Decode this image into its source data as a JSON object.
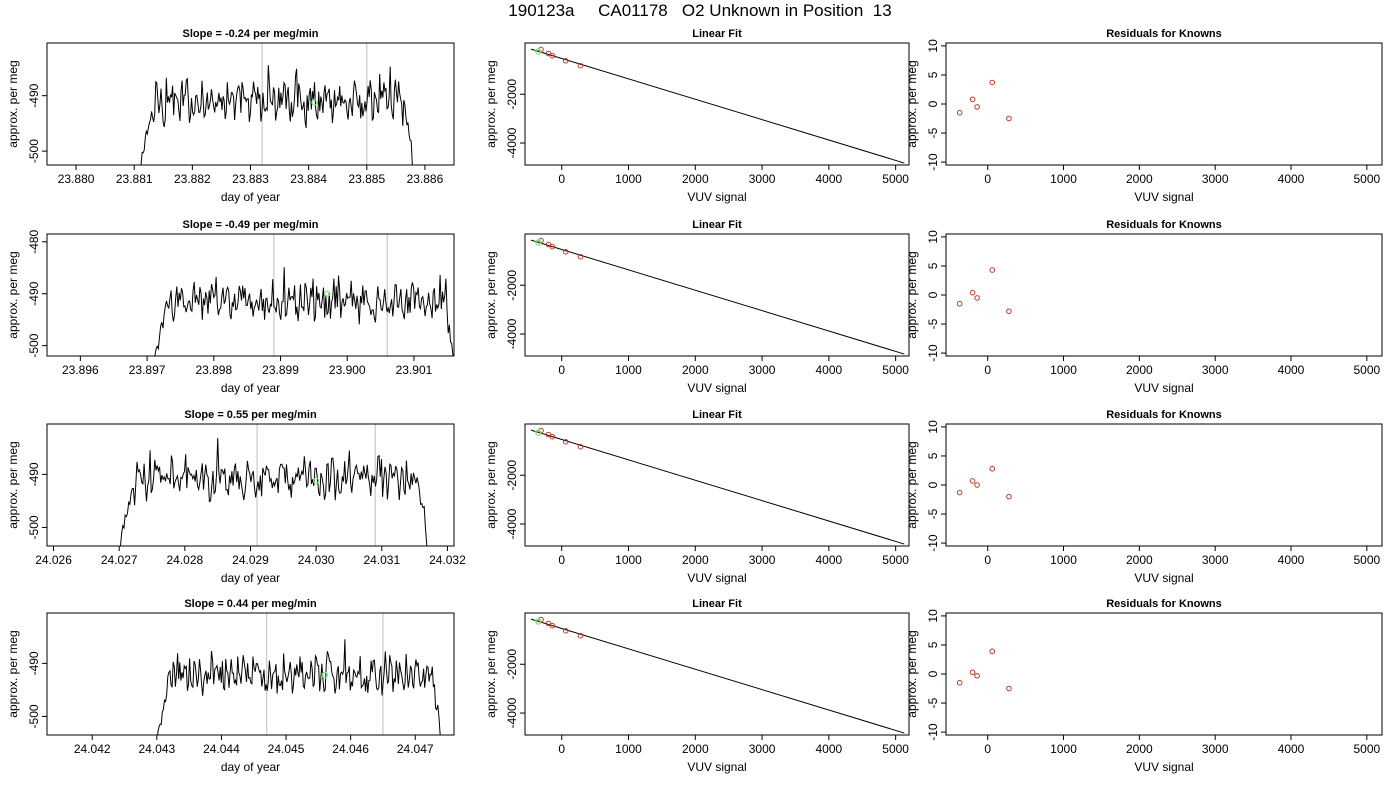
{
  "page": {
    "title": "190123a     CA01178   O2 Unknown in Position  13"
  },
  "colors": {
    "frame": "#000000",
    "trace": "#000000",
    "vertical_marker": "#c8c8c8",
    "highlight_point": "#7ee87e",
    "known_points": "#c0392b",
    "fit_line": "#000000"
  },
  "chart_data": [
    {
      "type": "line",
      "row": 0,
      "title": "Slope =  -0.24  per meg/min",
      "xlabel": "day of year",
      "ylabel": "approx. per meg",
      "xlim": [
        23.8795,
        23.8865
      ],
      "ylim": [
        -502.5,
        -480.5
      ],
      "xticks": [
        "23.880",
        "23.881",
        "23.882",
        "23.883",
        "23.884",
        "23.885",
        "23.886"
      ],
      "xtick_values": [
        23.88,
        23.881,
        23.882,
        23.883,
        23.884,
        23.885,
        23.886
      ],
      "yticks": [
        "-500",
        "-490"
      ],
      "ytick_values": [
        -500,
        -490
      ],
      "trace_start": 23.8811,
      "trace_end": 23.8858,
      "trace_level": -491.0,
      "vlines": [
        23.8832,
        23.885
      ],
      "highlight": {
        "x": 23.8841,
        "y": -491.2
      }
    },
    {
      "type": "line",
      "title": "Linear Fit",
      "row": 0,
      "xlabel": "VUV signal",
      "ylabel": "approx. per meg",
      "xlim": [
        -550,
        5200
      ],
      "ylim": [
        -4900,
        100
      ],
      "xticks": [
        "0",
        "1000",
        "2000",
        "3000",
        "4000",
        "5000"
      ],
      "xtick_values": [
        0,
        1000,
        2000,
        3000,
        4000,
        5000
      ],
      "yticks": [
        "-4000",
        "-2000"
      ],
      "ytick_values": [
        -4000,
        -2000
      ],
      "line": {
        "x": [
          -460,
          5130
        ],
        "y": [
          -150,
          -4820
        ]
      },
      "knowns": [
        {
          "x": -310,
          "y": -170
        },
        {
          "x": -200,
          "y": -330
        },
        {
          "x": -140,
          "y": -420
        },
        {
          "x": 60,
          "y": -630
        },
        {
          "x": 280,
          "y": -830
        }
      ],
      "unknown": {
        "x": -350,
        "y": -250
      }
    },
    {
      "type": "scatter",
      "row": 0,
      "title": "Residuals for Knowns",
      "xlabel": "VUV signal",
      "ylabel": "approx. per meg",
      "xlim": [
        -550,
        5200
      ],
      "ylim": [
        -10.5,
        10.5
      ],
      "xticks": [
        "0",
        "1000",
        "2000",
        "3000",
        "4000",
        "5000"
      ],
      "xtick_values": [
        0,
        1000,
        2000,
        3000,
        4000,
        5000
      ],
      "yticks": [
        "-10",
        "-5",
        "0",
        "5",
        "10"
      ],
      "ytick_values": [
        -10,
        -5,
        0,
        5,
        10
      ],
      "points": [
        {
          "x": -370,
          "y": -1.5
        },
        {
          "x": -200,
          "y": 0.8
        },
        {
          "x": -140,
          "y": -0.5
        },
        {
          "x": 60,
          "y": 3.7
        },
        {
          "x": 280,
          "y": -2.5
        }
      ]
    },
    {
      "type": "line",
      "row": 1,
      "title": "Slope =  -0.49  per meg/min",
      "xlabel": "day of year",
      "ylabel": "approx. per meg",
      "xlim": [
        23.8955,
        23.9016
      ],
      "ylim": [
        -502.0,
        -478.5
      ],
      "xticks": [
        "23.896",
        "23.897",
        "23.898",
        "23.899",
        "23.900",
        "23.901"
      ],
      "xtick_values": [
        23.896,
        23.897,
        23.898,
        23.899,
        23.9,
        23.901
      ],
      "yticks": [
        "-500",
        "-490",
        "-480"
      ],
      "ytick_values": [
        -500,
        -490,
        -480
      ],
      "trace_start": 23.8971,
      "trace_end": 23.9016,
      "trace_level": -491.5,
      "vlines": [
        23.8989,
        23.9006
      ],
      "highlight": {
        "x": 23.8997,
        "y": -490.0
      }
    },
    {
      "type": "line",
      "row": 1,
      "title": "Linear Fit",
      "xlabel": "VUV signal",
      "ylabel": "approx. per meg",
      "xlim": [
        -550,
        5200
      ],
      "ylim": [
        -4900,
        100
      ],
      "xticks": [
        "0",
        "1000",
        "2000",
        "3000",
        "4000",
        "5000"
      ],
      "xtick_values": [
        0,
        1000,
        2000,
        3000,
        4000,
        5000
      ],
      "yticks": [
        "-4000",
        "-2000"
      ],
      "ytick_values": [
        -4000,
        -2000
      ],
      "line": {
        "x": [
          -460,
          5130
        ],
        "y": [
          -150,
          -4820
        ]
      },
      "knowns": [
        {
          "x": -310,
          "y": -170
        },
        {
          "x": -200,
          "y": -330
        },
        {
          "x": -140,
          "y": -420
        },
        {
          "x": 60,
          "y": -630
        },
        {
          "x": 280,
          "y": -830
        }
      ],
      "unknown": {
        "x": -350,
        "y": -250
      }
    },
    {
      "type": "scatter",
      "row": 1,
      "title": "Residuals for Knowns",
      "xlabel": "VUV signal",
      "ylabel": "approx. per meg",
      "xlim": [
        -550,
        5200
      ],
      "ylim": [
        -10.5,
        10.5
      ],
      "xticks": [
        "0",
        "1000",
        "2000",
        "3000",
        "4000",
        "5000"
      ],
      "xtick_values": [
        0,
        1000,
        2000,
        3000,
        4000,
        5000
      ],
      "yticks": [
        "-10",
        "-5",
        "0",
        "5",
        "10"
      ],
      "ytick_values": [
        -10,
        -5,
        0,
        5,
        10
      ],
      "points": [
        {
          "x": -370,
          "y": -1.5
        },
        {
          "x": -200,
          "y": 0.4
        },
        {
          "x": -140,
          "y": -0.5
        },
        {
          "x": 60,
          "y": 4.3
        },
        {
          "x": 280,
          "y": -2.8
        }
      ]
    },
    {
      "type": "line",
      "row": 2,
      "title": "Slope =  0.55  per meg/min",
      "xlabel": "day of year",
      "ylabel": "approx. per meg",
      "xlim": [
        24.0259,
        24.0321
      ],
      "ylim": [
        -503.5,
        -480.5
      ],
      "xticks": [
        "24.026",
        "24.027",
        "24.028",
        "24.029",
        "24.030",
        "24.031",
        "24.032"
      ],
      "xtick_values": [
        24.026,
        24.027,
        24.028,
        24.029,
        24.03,
        24.031,
        24.032
      ],
      "yticks": [
        "-500",
        "-490"
      ],
      "ytick_values": [
        -500,
        -490
      ],
      "trace_start": 24.027,
      "trace_end": 24.0317,
      "trace_level": -490.8,
      "vlines": [
        24.0291,
        24.0309
      ],
      "highlight": {
        "x": 24.03,
        "y": -491.2
      }
    },
    {
      "type": "line",
      "row": 2,
      "title": "Linear Fit",
      "xlabel": "VUV signal",
      "ylabel": "approx. per meg",
      "xlim": [
        -550,
        5200
      ],
      "ylim": [
        -4900,
        100
      ],
      "xticks": [
        "0",
        "1000",
        "2000",
        "3000",
        "4000",
        "5000"
      ],
      "xtick_values": [
        0,
        1000,
        2000,
        3000,
        4000,
        5000
      ],
      "yticks": [
        "-4000",
        "-2000"
      ],
      "ytick_values": [
        -4000,
        -2000
      ],
      "line": {
        "x": [
          -460,
          5130
        ],
        "y": [
          -150,
          -4820
        ]
      },
      "knowns": [
        {
          "x": -310,
          "y": -170
        },
        {
          "x": -200,
          "y": -330
        },
        {
          "x": -140,
          "y": -420
        },
        {
          "x": 60,
          "y": -630
        },
        {
          "x": 280,
          "y": -830
        }
      ],
      "unknown": {
        "x": -350,
        "y": -250
      }
    },
    {
      "type": "scatter",
      "row": 2,
      "title": "Residuals for Knowns",
      "xlabel": "VUV signal",
      "ylabel": "approx. per meg",
      "xlim": [
        -550,
        5200
      ],
      "ylim": [
        -10.5,
        10.5
      ],
      "xticks": [
        "0",
        "1000",
        "2000",
        "3000",
        "4000",
        "5000"
      ],
      "xtick_values": [
        0,
        1000,
        2000,
        3000,
        4000,
        5000
      ],
      "yticks": [
        "-10",
        "-5",
        "0",
        "5",
        "10"
      ],
      "ytick_values": [
        -10,
        -5,
        0,
        5,
        10
      ],
      "points": [
        {
          "x": -370,
          "y": -1.3
        },
        {
          "x": -200,
          "y": 0.7
        },
        {
          "x": -140,
          "y": 0.0
        },
        {
          "x": 60,
          "y": 2.8
        },
        {
          "x": 280,
          "y": -2.0
        }
      ]
    },
    {
      "type": "line",
      "row": 3,
      "title": "Slope =  0.44  per meg/min",
      "xlabel": "day of year",
      "ylabel": "approx. per meg",
      "xlim": [
        24.0413,
        24.0476
      ],
      "ylim": [
        -503.5,
        -480.5
      ],
      "xticks": [
        "24.042",
        "24.043",
        "24.044",
        "24.045",
        "24.046",
        "24.047"
      ],
      "xtick_values": [
        24.042,
        24.043,
        24.044,
        24.045,
        24.046,
        24.047
      ],
      "yticks": [
        "-500",
        "-490"
      ],
      "ytick_values": [
        -500,
        -490
      ],
      "trace_start": 24.043,
      "trace_end": 24.0474,
      "trace_level": -492.0,
      "vlines": [
        24.0447,
        24.0465
      ],
      "highlight": {
        "x": 24.0456,
        "y": -492.2
      }
    },
    {
      "type": "line",
      "row": 3,
      "title": "Linear Fit",
      "xlabel": "VUV signal",
      "ylabel": "approx. per meg",
      "xlim": [
        -550,
        5200
      ],
      "ylim": [
        -4900,
        100
      ],
      "xticks": [
        "0",
        "1000",
        "2000",
        "3000",
        "4000",
        "5000"
      ],
      "xtick_values": [
        0,
        1000,
        2000,
        3000,
        4000,
        5000
      ],
      "yticks": [
        "-4000",
        "-2000"
      ],
      "ytick_values": [
        -4000,
        -2000
      ],
      "line": {
        "x": [
          -460,
          5130
        ],
        "y": [
          -150,
          -4820
        ]
      },
      "knowns": [
        {
          "x": -310,
          "y": -170
        },
        {
          "x": -200,
          "y": -330
        },
        {
          "x": -140,
          "y": -420
        },
        {
          "x": 60,
          "y": -630
        },
        {
          "x": 280,
          "y": -830
        }
      ],
      "unknown": {
        "x": -350,
        "y": -250
      }
    },
    {
      "type": "scatter",
      "row": 3,
      "title": "Residuals for Knowns",
      "xlabel": "VUV signal",
      "ylabel": "approx. per meg",
      "xlim": [
        -550,
        5200
      ],
      "ylim": [
        -10.5,
        10.5
      ],
      "xticks": [
        "0",
        "1000",
        "2000",
        "3000",
        "4000",
        "5000"
      ],
      "xtick_values": [
        0,
        1000,
        2000,
        3000,
        4000,
        5000
      ],
      "yticks": [
        "-10",
        "-5",
        "0",
        "5",
        "10"
      ],
      "ytick_values": [
        -10,
        -5,
        0,
        5,
        10
      ],
      "points": [
        {
          "x": -370,
          "y": -1.5
        },
        {
          "x": -200,
          "y": 0.3
        },
        {
          "x": -140,
          "y": -0.3
        },
        {
          "x": 60,
          "y": 3.9
        },
        {
          "x": 280,
          "y": -2.5
        }
      ]
    }
  ]
}
